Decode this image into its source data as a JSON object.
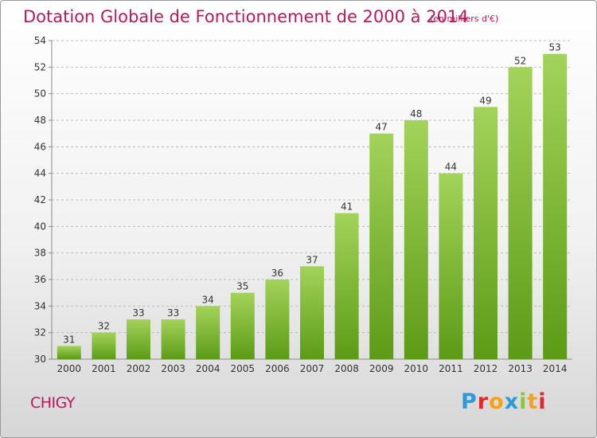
{
  "title": "Dotation Globale de Fonctionnement de 2000 à 2014",
  "unit_label": "(en milliers d'€)",
  "commune": "CHIGY",
  "brand": {
    "text": "Proxiti",
    "colors": [
      "#2b9ad6",
      "#e4262c",
      "#f7a11a",
      "#2b9ad6",
      "#8bc53f",
      "#f7a11a",
      "#e4262c"
    ]
  },
  "colors": {
    "title": "#c0175b",
    "bar_top": "#a3d35a",
    "bar_bottom": "#5c9b16",
    "grid": "#bcbcbc",
    "axis": "#8a8a8a",
    "text": "#333333"
  },
  "chart_data": {
    "type": "bar",
    "categories": [
      "2000",
      "2001",
      "2002",
      "2003",
      "2004",
      "2005",
      "2006",
      "2007",
      "2008",
      "2009",
      "2010",
      "2011",
      "2012",
      "2013",
      "2014"
    ],
    "values": [
      31,
      32,
      33,
      33,
      34,
      35,
      36,
      37,
      41,
      47,
      48,
      44,
      49,
      52,
      53
    ],
    "ylim": [
      30,
      54
    ],
    "yticks": [
      30,
      32,
      34,
      36,
      38,
      40,
      42,
      44,
      46,
      48,
      50,
      52,
      54
    ],
    "grid": true,
    "grid_style": "dashed"
  }
}
